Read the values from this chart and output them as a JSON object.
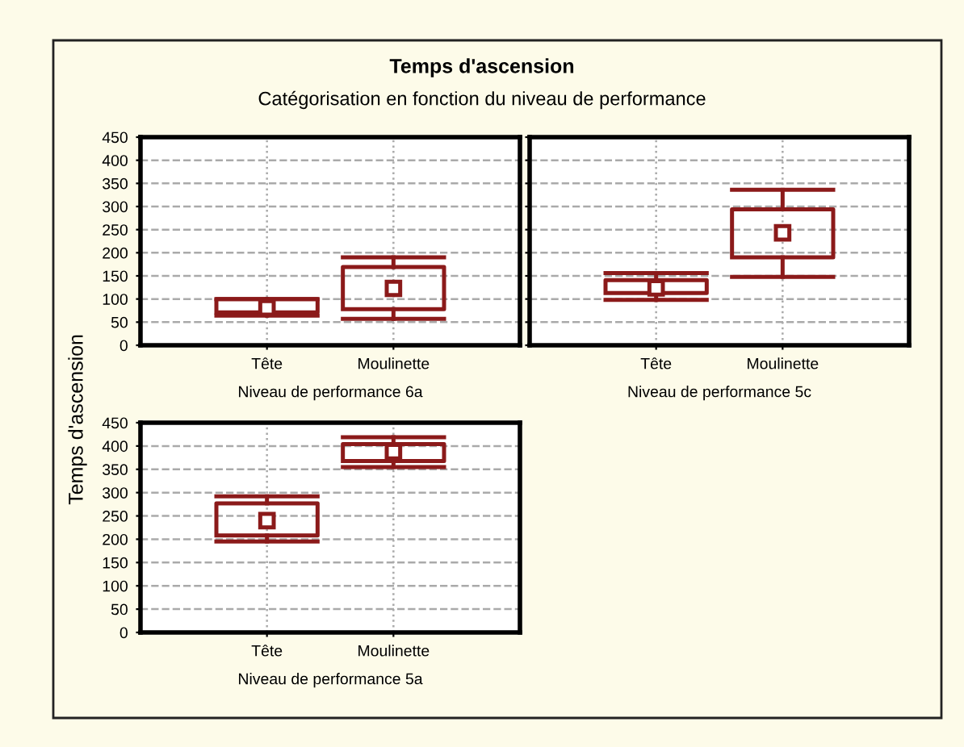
{
  "chart_data": [
    {
      "type": "box",
      "title": "Temps d'ascension",
      "subtitle": "Catégorisation en fonction du niveau de performance",
      "ylabel": "Temps d'ascension",
      "xlabel": "Niveau de performance 6a",
      "categories": [
        "Tête",
        "Moulinette"
      ],
      "color": "#8b1a1a",
      "ylim": [
        0,
        450
      ],
      "yticks": [
        0,
        50,
        100,
        150,
        200,
        250,
        300,
        350,
        400,
        450
      ],
      "grid": true,
      "boxes": [
        {
          "low": 64,
          "q1": 71,
          "median": 81,
          "q3": 100,
          "high": 100
        },
        {
          "low": 57,
          "q1": 78,
          "median": 123,
          "q3": 169,
          "high": 190
        }
      ]
    },
    {
      "type": "box",
      "xlabel": "Niveau de performance 5c",
      "categories": [
        "Tête",
        "Moulinette"
      ],
      "color": "#8b1a1a",
      "ylim": [
        0,
        450
      ],
      "yticks": [
        0,
        50,
        100,
        150,
        200,
        250,
        300,
        350,
        400,
        450
      ],
      "grid": true,
      "tick_labels": "x",
      "boxes": [
        {
          "low": 98,
          "q1": 113,
          "median": 124,
          "q3": 141,
          "high": 156
        },
        {
          "low": 148,
          "q1": 190,
          "median": 243,
          "q3": 294,
          "high": 336
        }
      ]
    },
    {
      "type": "box",
      "xlabel": "Niveau de performance 5a",
      "categories": [
        "Tête",
        "Moulinette"
      ],
      "color": "#8b1a1a",
      "ylim": [
        0,
        450
      ],
      "yticks": [
        0,
        50,
        100,
        150,
        200,
        250,
        300,
        350,
        400,
        450
      ],
      "grid": true,
      "boxes": [
        {
          "low": 195,
          "q1": 208,
          "median": 240,
          "q3": 277,
          "high": 292
        },
        {
          "low": 355,
          "q1": 368,
          "median": 388,
          "q3": 404,
          "high": 419
        }
      ]
    }
  ]
}
